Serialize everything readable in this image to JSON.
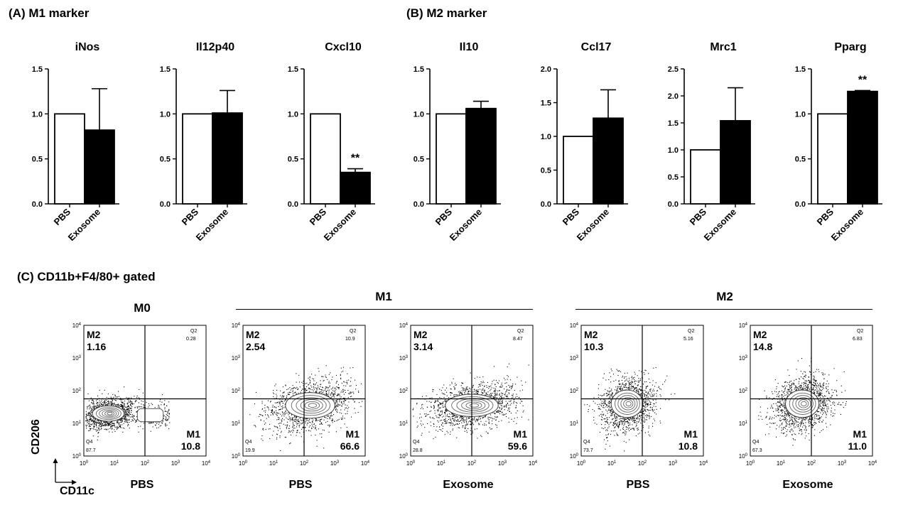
{
  "panels": {
    "a_label": "(A) M1 marker",
    "b_label": "(B) M2 marker",
    "c_label": "(C)  CD11b+F4/80+ gated"
  },
  "chart_data": [
    {
      "type": "bar",
      "title": "iNos",
      "categories": [
        "PBS",
        "Exosome"
      ],
      "values": [
        1.0,
        0.82
      ],
      "errors": [
        0,
        0.46
      ],
      "ylim": [
        0,
        1.5
      ],
      "yticks": [
        "0.0",
        "0.5",
        "1.0",
        "1.5"
      ],
      "significance": "",
      "colors": [
        "#ffffff",
        "#000000"
      ]
    },
    {
      "type": "bar",
      "title": "Il12p40",
      "categories": [
        "PBS",
        "Exosome"
      ],
      "values": [
        1.0,
        1.01
      ],
      "errors": [
        0,
        0.25
      ],
      "ylim": [
        0,
        1.5
      ],
      "yticks": [
        "0.0",
        "0.5",
        "1.0",
        "1.5"
      ],
      "significance": "",
      "colors": [
        "#ffffff",
        "#000000"
      ]
    },
    {
      "type": "bar",
      "title": "Cxcl10",
      "categories": [
        "PBS",
        "Exosome"
      ],
      "values": [
        1.0,
        0.35
      ],
      "errors": [
        0,
        0.04
      ],
      "ylim": [
        0,
        1.5
      ],
      "yticks": [
        "0.0",
        "0.5",
        "1.0",
        "1.5"
      ],
      "significance": "**",
      "colors": [
        "#ffffff",
        "#000000"
      ]
    },
    {
      "type": "bar",
      "title": "Il10",
      "categories": [
        "PBS",
        "Exosome"
      ],
      "values": [
        1.0,
        1.06
      ],
      "errors": [
        0,
        0.08
      ],
      "ylim": [
        0,
        1.5
      ],
      "yticks": [
        "0.0",
        "0.5",
        "1.0",
        "1.5"
      ],
      "significance": "",
      "colors": [
        "#ffffff",
        "#000000"
      ]
    },
    {
      "type": "bar",
      "title": "Ccl17",
      "categories": [
        "PBS",
        "Exosome"
      ],
      "values": [
        1.0,
        1.27
      ],
      "errors": [
        0,
        0.42
      ],
      "ylim": [
        0,
        2.0
      ],
      "yticks": [
        "0.0",
        "0.5",
        "1.0",
        "1.5",
        "2.0"
      ],
      "significance": "",
      "colors": [
        "#ffffff",
        "#000000"
      ]
    },
    {
      "type": "bar",
      "title": "Mrc1",
      "categories": [
        "PBS",
        "Exosome"
      ],
      "values": [
        1.0,
        1.54
      ],
      "errors": [
        0,
        0.61
      ],
      "ylim": [
        0,
        2.5
      ],
      "yticks": [
        "0.0",
        "0.5",
        "1.0",
        "1.5",
        "2.0",
        "2.5"
      ],
      "significance": "",
      "colors": [
        "#ffffff",
        "#000000"
      ]
    },
    {
      "type": "bar",
      "title": "Pparg",
      "categories": [
        "PBS",
        "Exosome"
      ],
      "values": [
        1.0,
        1.25
      ],
      "errors": [
        0,
        0.01
      ],
      "ylim": [
        0,
        1.5
      ],
      "yticks": [
        "0.0",
        "0.5",
        "1.0",
        "1.5"
      ],
      "significance": "**",
      "colors": [
        "#ffffff",
        "#000000"
      ]
    }
  ],
  "flow": {
    "groups": [
      "M0",
      "M1",
      "M2"
    ],
    "y_axis_label": "CD206",
    "x_axis_label": "CD11c",
    "decades": [
      "0",
      "1",
      "2",
      "3",
      "4"
    ],
    "plots": [
      {
        "group": "M0",
        "caption": "PBS",
        "m2_label": "M2",
        "m2": "1.16",
        "q2_label": "Q2",
        "q2": "0.28",
        "m1_label": "M1",
        "m1": "10.8",
        "q4_label": "Q4",
        "q4": "87.7",
        "center": [
          0.8,
          1.3
        ],
        "spread": [
          0.9,
          0.45
        ],
        "tail": true
      },
      {
        "group": "M1",
        "caption": "PBS",
        "m2_label": "M2",
        "m2": "2.54",
        "q2_label": "Q2",
        "q2": "10.9",
        "m1_label": "M1",
        "m1": "66.6",
        "q4_label": "Q4",
        "q4": "19.9",
        "center": [
          2.2,
          1.55
        ],
        "spread": [
          1.4,
          0.75
        ],
        "tail": false
      },
      {
        "group": "M1",
        "caption": "Exosome",
        "m2_label": "M2",
        "m2": "3.14",
        "q2_label": "Q2",
        "q2": "8.47",
        "m1_label": "M1",
        "m1": "59.6",
        "q4_label": "Q4",
        "q4": "28.8",
        "center": [
          2.0,
          1.55
        ],
        "spread": [
          1.5,
          0.65
        ],
        "tail": false
      },
      {
        "group": "M2",
        "caption": "PBS",
        "m2_label": "M2",
        "m2": "10.3",
        "q2_label": "Q2",
        "q2": "5.16",
        "m1_label": "M1",
        "m1": "10.8",
        "q4_label": "Q4",
        "q4": "73.7",
        "center": [
          1.5,
          1.6
        ],
        "spread": [
          0.9,
          0.8
        ],
        "tail": false
      },
      {
        "group": "M2",
        "caption": "Exosome",
        "m2_label": "M2",
        "m2": "14.8",
        "q2_label": "Q2",
        "q2": "6.83",
        "m1_label": "M1",
        "m1": "11.0",
        "q4_label": "Q4",
        "q4": "67.3",
        "center": [
          1.7,
          1.6
        ],
        "spread": [
          0.95,
          0.8
        ],
        "tail": false
      }
    ]
  }
}
